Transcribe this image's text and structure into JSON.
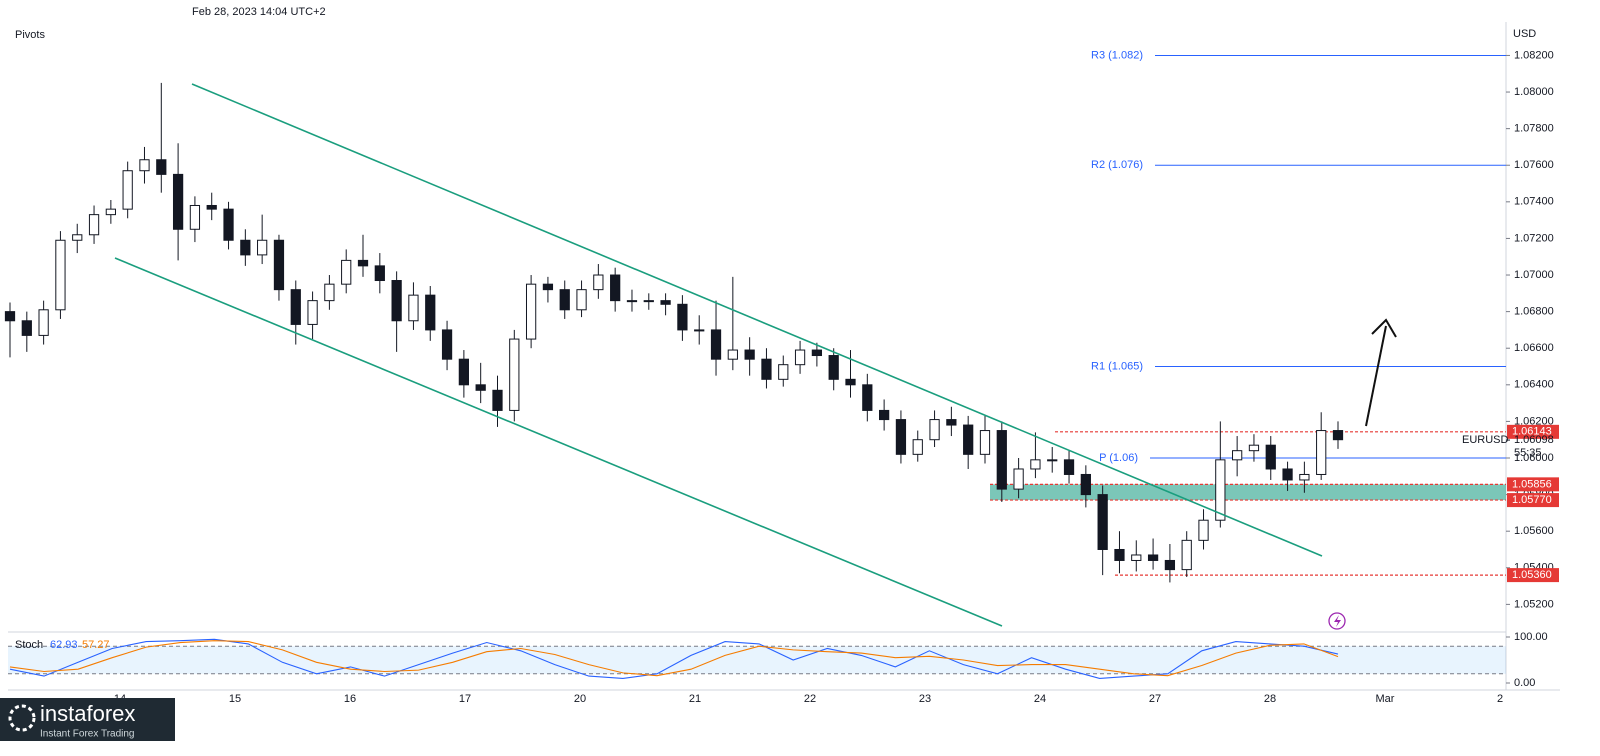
{
  "chart_data": {
    "type": "candlestick",
    "timestamp": "Feb 28, 2023 14:04 UTC+2",
    "indicator": "Pivots",
    "currency": "USD",
    "symbol": "EURUSD",
    "countdown": "55:35",
    "current_price": {
      "value": 1.06098,
      "label": "1.06098"
    },
    "categories": [
      "14",
      "15",
      "16",
      "17",
      "20",
      "21",
      "22",
      "23",
      "24",
      "27",
      "28",
      "Mar",
      "2"
    ],
    "ylim": [
      1.0506,
      1.0835
    ],
    "yticks": [
      {
        "value": 1.052,
        "label": "1.05200"
      },
      {
        "value": 1.054,
        "label": "1.05400"
      },
      {
        "value": 1.056,
        "label": "1.05600"
      },
      {
        "value": 1.058,
        "label": "1.05800"
      },
      {
        "value": 1.06,
        "label": "1.06000"
      },
      {
        "value": 1.062,
        "label": "1.06200"
      },
      {
        "value": 1.064,
        "label": "1.06400"
      },
      {
        "value": 1.066,
        "label": "1.06600"
      },
      {
        "value": 1.068,
        "label": "1.06800"
      },
      {
        "value": 1.07,
        "label": "1.07000"
      },
      {
        "value": 1.072,
        "label": "1.07200"
      },
      {
        "value": 1.074,
        "label": "1.07400"
      },
      {
        "value": 1.076,
        "label": "1.07600"
      },
      {
        "value": 1.078,
        "label": "1.07800"
      },
      {
        "value": 1.08,
        "label": "1.08000"
      },
      {
        "value": 1.082,
        "label": "1.08200"
      }
    ],
    "open": [
      1.068,
      1.0675,
      1.0667,
      1.0681,
      1.0719,
      1.0722,
      1.0733,
      1.0736,
      1.0757,
      1.0763,
      1.0755,
      1.0725,
      1.0738,
      1.0736,
      1.0719,
      1.0711,
      1.0719,
      1.0692,
      1.0673,
      1.0686,
      1.0695,
      1.0708,
      1.0705,
      1.0697,
      1.0675,
      1.0689,
      1.067,
      1.0654,
      1.064,
      1.0637,
      1.0626,
      1.0665,
      1.0695,
      1.0692,
      1.0681,
      1.0692,
      1.07,
      1.0686,
      1.0686,
      1.0686,
      1.0684,
      1.067,
      1.067,
      1.0654,
      1.0659,
      1.0654,
      1.0643,
      1.0651,
      1.0659,
      1.0656,
      1.0643,
      1.064,
      1.0626,
      1.0621,
      1.0602,
      1.061,
      1.0621,
      1.0618,
      1.0602,
      1.0615,
      1.0583,
      1.0594,
      1.0599,
      1.0599,
      1.0591,
      1.058,
      1.055,
      1.0544,
      1.0547,
      1.0544,
      1.0539,
      1.0555,
      1.0566,
      1.0599,
      1.0604,
      1.0607,
      1.0594,
      1.0588,
      1.0591,
      1.0615
    ],
    "high": [
      1.0685,
      1.068,
      1.0686,
      1.0724,
      1.0728,
      1.0738,
      1.0741,
      1.0762,
      1.077,
      1.0805,
      1.0772,
      1.0743,
      1.0745,
      1.074,
      1.0725,
      1.0733,
      1.0722,
      1.0697,
      1.0691,
      1.07,
      1.0714,
      1.0722,
      1.0712,
      1.0702,
      1.0696,
      1.0694,
      1.0675,
      1.0659,
      1.0652,
      1.0645,
      1.067,
      1.07,
      1.0699,
      1.0697,
      1.0697,
      1.0706,
      1.0704,
      1.0692,
      1.069,
      1.069,
      1.0689,
      1.0678,
      1.0686,
      1.0699,
      1.0666,
      1.066,
      1.0656,
      1.0664,
      1.0663,
      1.066,
      1.0659,
      1.0646,
      1.0632,
      1.0626,
      1.0615,
      1.0626,
      1.0628,
      1.0623,
      1.0623,
      1.062,
      1.06,
      1.0614,
      1.0606,
      1.0604,
      1.0596,
      1.0585,
      1.056,
      1.0555,
      1.0556,
      1.0553,
      1.056,
      1.0572,
      1.062,
      1.0612,
      1.0613,
      1.0612,
      1.0598,
      1.0598,
      1.0625,
      1.062
    ],
    "low": [
      1.0655,
      1.0658,
      1.0662,
      1.0676,
      1.0712,
      1.0717,
      1.0728,
      1.0731,
      1.075,
      1.0745,
      1.0708,
      1.0718,
      1.073,
      1.0714,
      1.0705,
      1.0706,
      1.0686,
      1.0662,
      1.0665,
      1.0681,
      1.069,
      1.0699,
      1.069,
      1.0658,
      1.067,
      1.0664,
      1.0648,
      1.0633,
      1.063,
      1.0617,
      1.062,
      1.066,
      1.0685,
      1.0676,
      1.0677,
      1.0687,
      1.068,
      1.068,
      1.0681,
      1.0678,
      1.0664,
      1.0662,
      1.0645,
      1.0648,
      1.0645,
      1.0638,
      1.0639,
      1.0646,
      1.065,
      1.0637,
      1.0633,
      1.062,
      1.0615,
      1.0597,
      1.0598,
      1.0606,
      1.0612,
      1.0594,
      1.0597,
      1.0576,
      1.0578,
      1.0589,
      1.0592,
      1.0586,
      1.0573,
      1.0536,
      1.0537,
      1.0538,
      1.0539,
      1.0532,
      1.0535,
      1.055,
      1.0562,
      1.059,
      1.0598,
      1.0588,
      1.0582,
      1.0581,
      1.0588,
      1.0605
    ],
    "close": [
      1.0675,
      1.0667,
      1.0681,
      1.0719,
      1.0722,
      1.0733,
      1.0736,
      1.0757,
      1.0763,
      1.0755,
      1.0725,
      1.0738,
      1.0736,
      1.0719,
      1.0711,
      1.0719,
      1.0692,
      1.0673,
      1.0686,
      1.0695,
      1.0708,
      1.0705,
      1.0697,
      1.0675,
      1.0689,
      1.067,
      1.0654,
      1.064,
      1.0637,
      1.0626,
      1.0665,
      1.0695,
      1.0692,
      1.0681,
      1.0692,
      1.07,
      1.0686,
      1.0686,
      1.0686,
      1.0684,
      1.067,
      1.067,
      1.0654,
      1.0659,
      1.0654,
      1.0643,
      1.0651,
      1.0659,
      1.0656,
      1.0643,
      1.064,
      1.0626,
      1.0621,
      1.0602,
      1.061,
      1.0621,
      1.0618,
      1.0602,
      1.0615,
      1.0583,
      1.0594,
      1.0599,
      1.0599,
      1.0591,
      1.058,
      1.055,
      1.0544,
      1.0547,
      1.0544,
      1.0539,
      1.0555,
      1.0566,
      1.0599,
      1.0604,
      1.0607,
      1.0594,
      1.0588,
      1.0591,
      1.0615,
      1.061
    ],
    "pivots": [
      {
        "label": "R3 (1.082)",
        "value": 1.082
      },
      {
        "label": "R2 (1.076)",
        "value": 1.076
      },
      {
        "label": "R1 (1.065)",
        "value": 1.065
      },
      {
        "label": "P (1.06)",
        "value": 1.06
      }
    ],
    "levels": [
      {
        "label": "1.06143",
        "value": 1.06143
      },
      {
        "label": "1.05856",
        "value": 1.05856
      },
      {
        "label": "1.05770",
        "value": 1.0577
      },
      {
        "label": "1.05360",
        "value": 1.0536
      }
    ],
    "stochastic": {
      "name": "Stoch",
      "ylim": [
        0,
        100
      ],
      "yticks": [
        {
          "value": 100,
          "label": "100.00"
        },
        {
          "value": 0,
          "label": "0.00"
        }
      ],
      "bands": [
        20,
        80
      ],
      "series": [
        {
          "name": "62.93",
          "color": "#2962ff",
          "values": [
            30,
            15,
            45,
            75,
            90,
            92,
            95,
            85,
            45,
            20,
            35,
            15,
            40,
            65,
            88,
            70,
            40,
            15,
            10,
            20,
            60,
            90,
            85,
            50,
            75,
            60,
            35,
            70,
            40,
            20,
            55,
            30,
            10,
            15,
            20,
            70,
            90,
            85,
            80,
            62.93
          ]
        },
        {
          "name": "57.27",
          "color": "#f57c00",
          "values": [
            35,
            25,
            30,
            55,
            78,
            88,
            92,
            90,
            72,
            45,
            30,
            25,
            28,
            45,
            68,
            75,
            62,
            40,
            22,
            16,
            30,
            60,
            80,
            72,
            68,
            65,
            55,
            58,
            50,
            38,
            40,
            40,
            30,
            20,
            16,
            38,
            65,
            82,
            85,
            57.27
          ]
        }
      ]
    }
  },
  "logo": {
    "name": "instaforex",
    "tagline": "Instant Forex Trading"
  }
}
